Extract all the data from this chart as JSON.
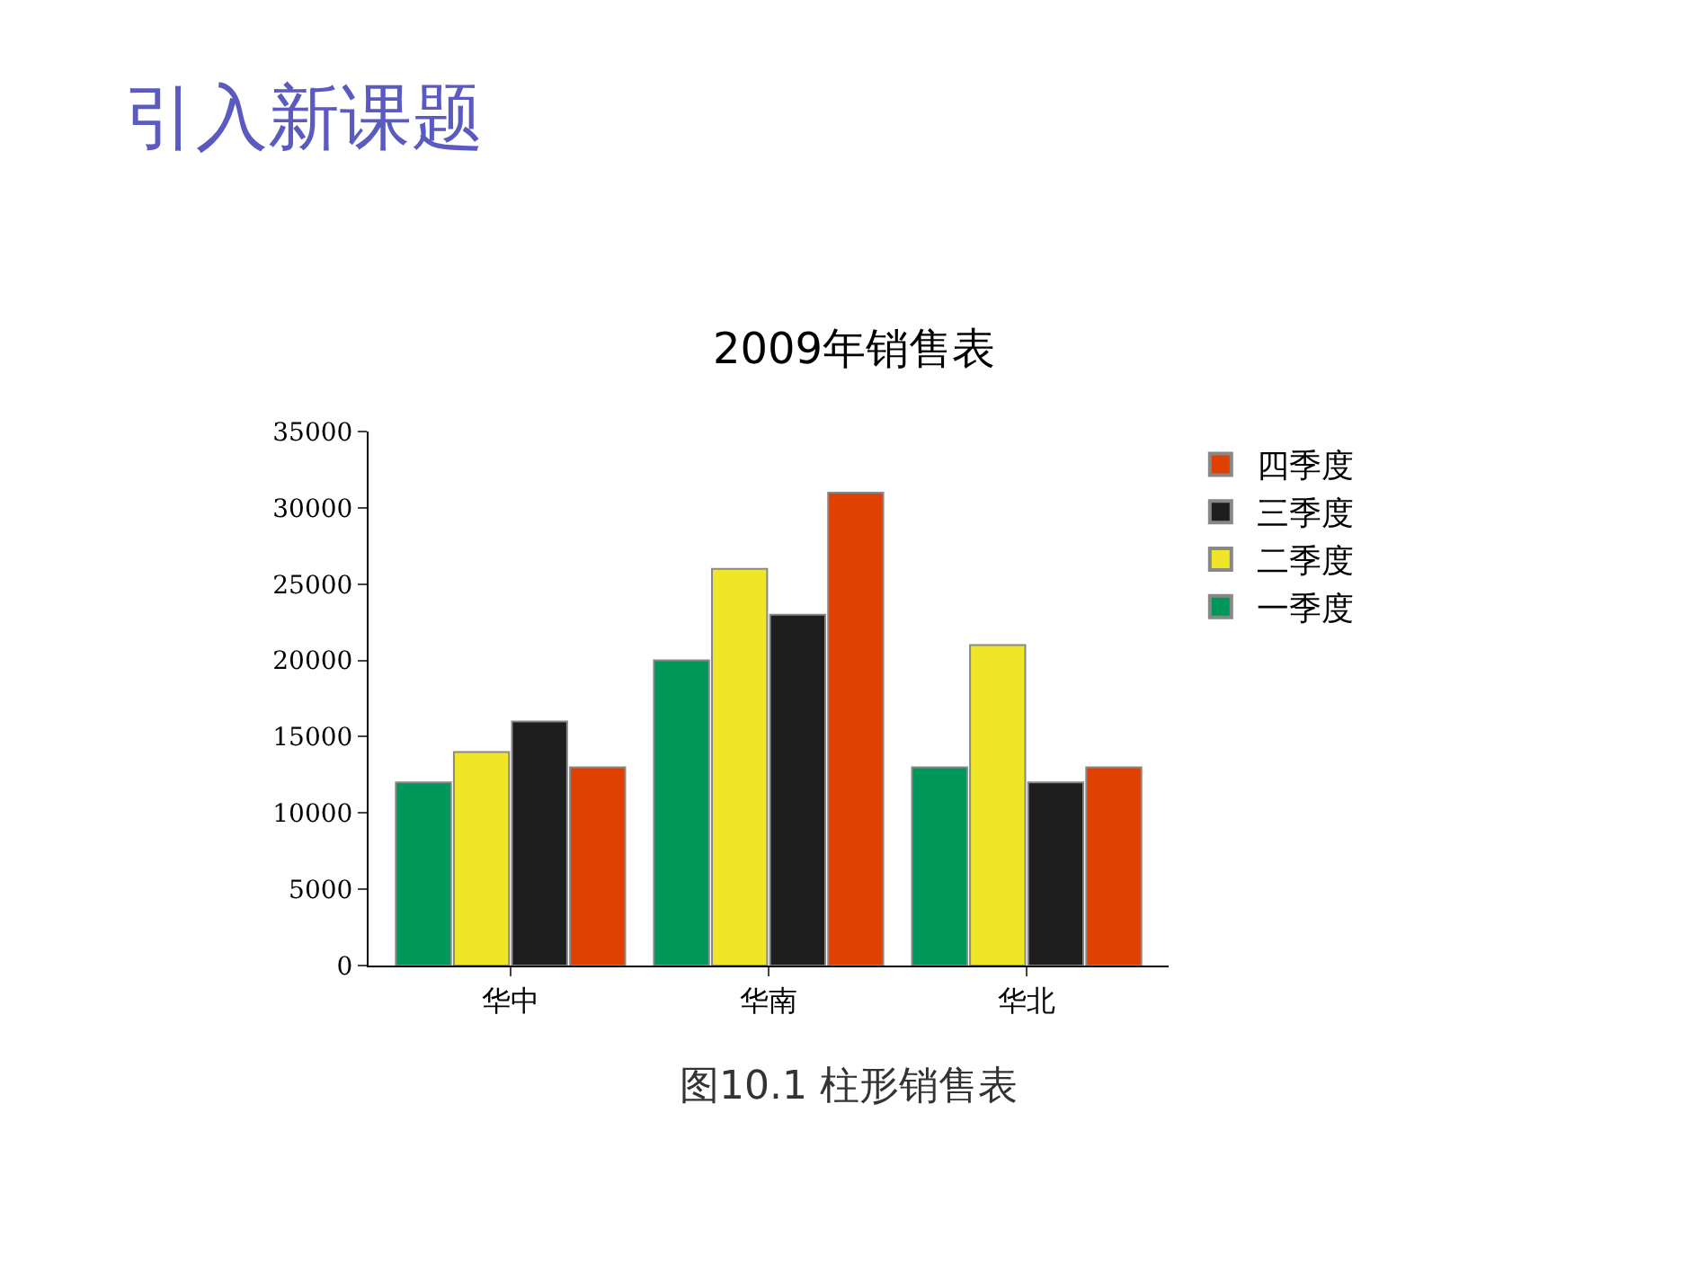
{
  "chart_data": {
    "type": "bar",
    "title": "2009年销售表",
    "categories": [
      "华中",
      "华南",
      "华北"
    ],
    "series": [
      {
        "name": "一季度",
        "color": "#00975a",
        "values": [
          12000,
          20000,
          13000
        ]
      },
      {
        "name": "二季度",
        "color": "#f0e628",
        "values": [
          14000,
          26000,
          21000
        ]
      },
      {
        "name": "三季度",
        "color": "#1e1e1e",
        "values": [
          16000,
          23000,
          12000
        ]
      },
      {
        "name": "四季度",
        "color": "#e04000",
        "values": [
          13000,
          31000,
          13000
        ]
      }
    ],
    "ylim": [
      0,
      35000
    ],
    "yticks": [
      0,
      5000,
      10000,
      15000,
      20000,
      25000,
      30000,
      35000
    ],
    "legend": "top right",
    "annotations": [
      "引入新课题",
      "图10.1 柱形销售表"
    ]
  }
}
